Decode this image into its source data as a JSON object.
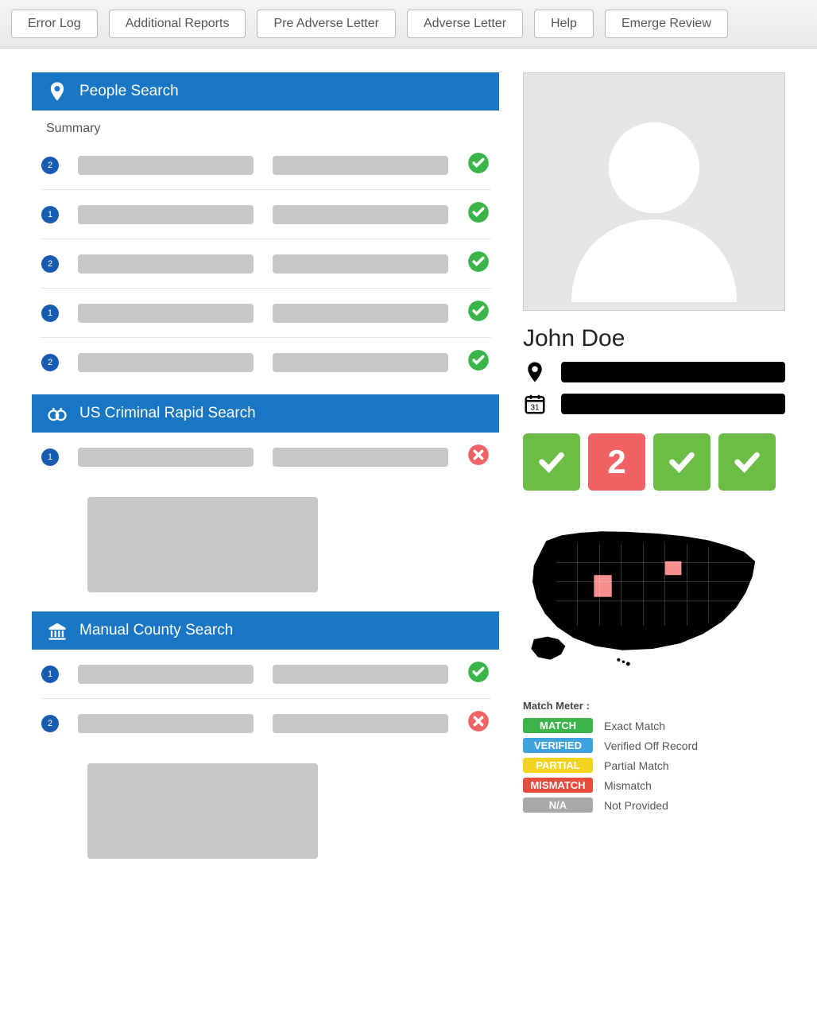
{
  "toolbar": {
    "buttons": [
      "Error Log",
      "Additional Reports",
      "Pre Adverse Letter",
      "Adverse Letter",
      "Help",
      "Emerge Review"
    ]
  },
  "sections": {
    "people_search": {
      "title": "People Search",
      "summary_label": "Summary",
      "rows": [
        {
          "badge": "2",
          "status": "ok"
        },
        {
          "badge": "1",
          "status": "ok"
        },
        {
          "badge": "2",
          "status": "ok"
        },
        {
          "badge": "1",
          "status": "ok"
        },
        {
          "badge": "2",
          "status": "ok"
        }
      ]
    },
    "criminal": {
      "title": "US Criminal Rapid Search",
      "rows": [
        {
          "badge": "1",
          "status": "bad"
        }
      ]
    },
    "county": {
      "title": "Manual County Search",
      "rows": [
        {
          "badge": "1",
          "status": "ok"
        },
        {
          "badge": "2",
          "status": "bad"
        }
      ]
    }
  },
  "profile": {
    "name": "John Doe",
    "tiles": [
      {
        "type": "check",
        "color": "#6bbd45"
      },
      {
        "type": "number",
        "value": "2",
        "color": "#f06263"
      },
      {
        "type": "check",
        "color": "#6bbd45"
      },
      {
        "type": "check",
        "color": "#6bbd45"
      }
    ],
    "map": {
      "base_fill": "#000000",
      "highlight_fill": "#f78f8f",
      "highlighted_states": [
        "Utah",
        "Iowa"
      ]
    }
  },
  "match_meter": {
    "title": "Match Meter :",
    "items": [
      {
        "label": "MATCH",
        "desc": "Exact Match",
        "color": "#3bb54a"
      },
      {
        "label": "VERIFIED",
        "desc": "Verified Off Record",
        "color": "#3fa3e0"
      },
      {
        "label": "PARTIAL",
        "desc": "Partial Match",
        "color": "#f2d41f"
      },
      {
        "label": "MISMATCH",
        "desc": "Mismatch",
        "color": "#e74c3c"
      },
      {
        "label": "N/A",
        "desc": "Not Provided",
        "color": "#a9a9a9"
      }
    ]
  },
  "colors": {
    "section_header": "#1976c5",
    "placeholder": "#c6c7c9",
    "badge": "#175cb1",
    "ok": "#3bb54a",
    "bad": "#f06263"
  }
}
